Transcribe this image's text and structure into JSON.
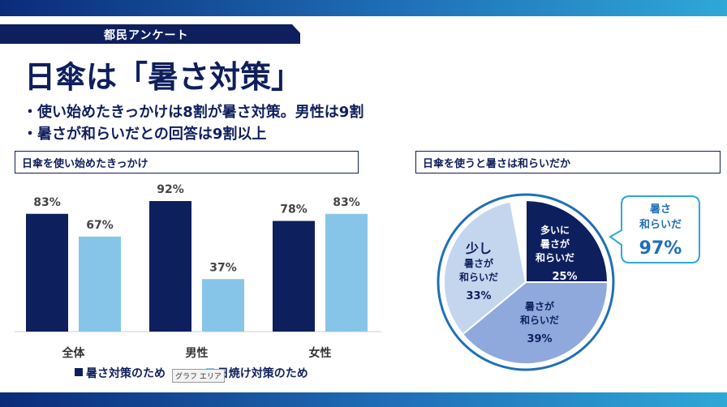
{
  "header": {
    "tag": "都民アンケート",
    "title": "日傘は「暑さ対策」"
  },
  "bullets": [
    "・使い始めたきっかけは8割が暑さ対策。男性は9割",
    "・暑さが和らいだとの回答は9割以上"
  ],
  "tooltip": "グラフ エリア",
  "colors": {
    "navy": "#0e1f5e",
    "light_blue": "#87c5e8",
    "mid_blue": "#8fa9dc",
    "pale_blue": "#c3d6ee",
    "accent": "#1f6fb8"
  },
  "chart_data": [
    {
      "type": "bar",
      "title": "日傘を使い始めたきっかけ",
      "categories": [
        "全体",
        "男性",
        "女性"
      ],
      "series": [
        {
          "name": "暑さ対策のため",
          "values": [
            83,
            92,
            78
          ],
          "labels": [
            "83%",
            "92%",
            "78%"
          ],
          "color": "#0e1f5e"
        },
        {
          "name": "日焼け対策のため",
          "values": [
            67,
            37,
            83
          ],
          "labels": [
            "67%",
            "37%",
            "83%"
          ],
          "color": "#87c5e8"
        }
      ],
      "ylim": [
        0,
        100
      ],
      "grid": false,
      "legend": "bottom"
    },
    {
      "type": "pie",
      "title": "日傘を使うと暑さは和らいだか",
      "slices": [
        {
          "label": "多いに暑さが和らいだ",
          "lines": [
            "多いに",
            "暑さが",
            "和らいだ"
          ],
          "value": 25,
          "value_label": "25%",
          "color": "#0e1f5e"
        },
        {
          "label": "暑さが和らいだ",
          "lines": [
            "暑さが",
            "和らいだ"
          ],
          "value": 39,
          "value_label": "39%",
          "color": "#8fa9dc"
        },
        {
          "label": "少し暑さが和らいだ",
          "lines": [
            "少し",
            "暑さが",
            "和らいだ"
          ],
          "value": 33,
          "value_label": "33%",
          "color": "#c3d6ee"
        }
      ],
      "callout": {
        "lines": [
          "暑さ",
          "和らいだ"
        ],
        "value_label": "97%"
      }
    }
  ]
}
